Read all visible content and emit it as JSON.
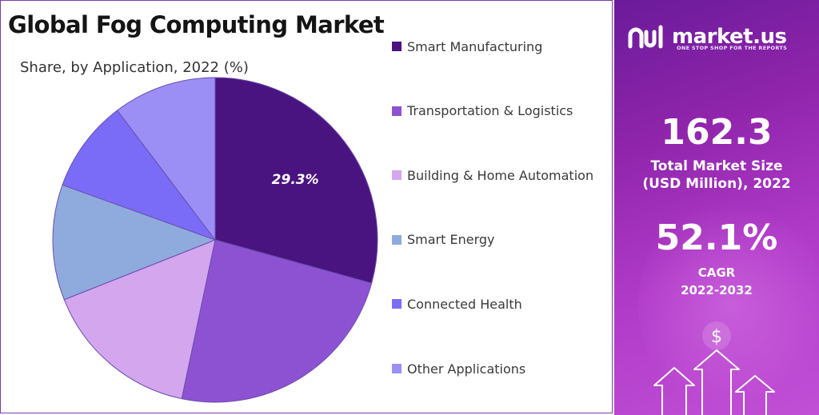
{
  "header": {
    "title": "Global Fog Computing Market",
    "subtitle": "Share, by Application, 2022 (%)"
  },
  "chart_data": {
    "type": "pie",
    "title": "Global Fog Computing Market",
    "subtitle": "Share, by Application, 2022 (%)",
    "start_angle_deg": 0,
    "direction": "clockwise",
    "legend_position": "right",
    "slices": [
      {
        "label": "Smart Manufacturing",
        "value": 29.3,
        "color": "#4a1480",
        "data_label": "29.3%"
      },
      {
        "label": "Transportation & Logistics",
        "value": 24.0,
        "color": "#8d52d1",
        "data_label": ""
      },
      {
        "label": "Building & Home Automation",
        "value": 15.7,
        "color": "#d4a6ee",
        "data_label": ""
      },
      {
        "label": "Smart Energy",
        "value": 11.5,
        "color": "#8faadd",
        "data_label": ""
      },
      {
        "label": "Connected Health",
        "value": 9.2,
        "color": "#7b6cf7",
        "data_label": ""
      },
      {
        "label": "Other Applications",
        "value": 10.3,
        "color": "#9b8ff5",
        "data_label": ""
      }
    ]
  },
  "sidebar": {
    "brand": "market.us",
    "tagline": "ONE STOP SHOP FOR THE REPORTS",
    "market_size_value": "162.3",
    "market_size_label_line1": "Total Market Size",
    "market_size_label_line2": "(USD Million), 2022",
    "cagr_value": "52.1%",
    "cagr_label": "CAGR",
    "cagr_period": "2022-2032",
    "dollar_symbol": "$",
    "colors": {
      "gradient_start": "#6a1b9a",
      "gradient_end": "#c150d6"
    }
  }
}
